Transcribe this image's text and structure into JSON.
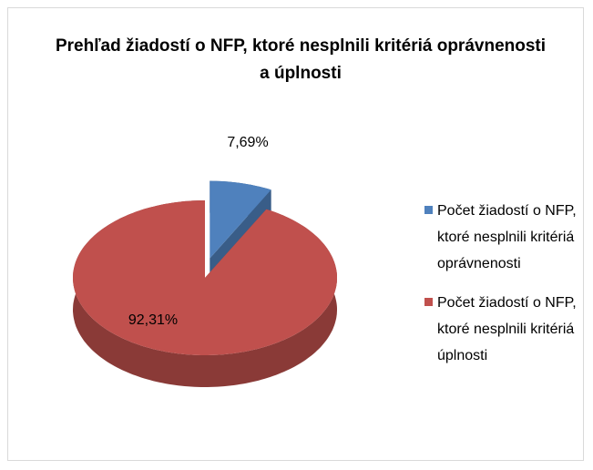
{
  "chart_data": {
    "type": "pie",
    "title": "Prehľad žiadostí o NFP, ktoré nesplnili kritériá oprávnenosti a úplnosti",
    "categories": [
      "Počet žiadostí o NFP, ktoré nesplnili kritériá oprávnenosti",
      "Počet žiadostí o NFP, ktoré nesplnili kritériá úplnosti"
    ],
    "values": [
      7.69,
      92.31
    ],
    "value_labels": [
      "7,69%",
      "92,31%"
    ],
    "colors": [
      "#4f81bd",
      "#c0504d"
    ],
    "legend": "right"
  }
}
